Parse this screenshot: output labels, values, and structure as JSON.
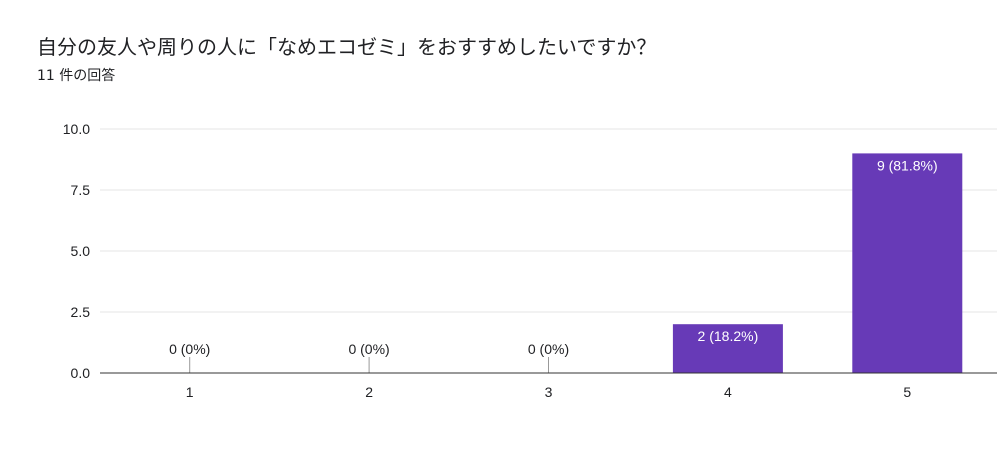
{
  "header": {
    "title": "自分の友人や周りの人に「なめエコゼミ」をおすすめしたいですか？",
    "response_count": "11 件の回答"
  },
  "colors": {
    "bar": "#673ab7",
    "grid": "#e6e6e6",
    "axis": "#333333",
    "text": "#202124",
    "bar_label": "#ffffff"
  },
  "chart_data": {
    "type": "bar",
    "categories": [
      "1",
      "2",
      "3",
      "4",
      "5"
    ],
    "values": [
      0,
      0,
      0,
      2,
      9
    ],
    "data_labels": [
      "0 (0%)",
      "0 (0%)",
      "0 (0%)",
      "2 (18.2%)",
      "9 (81.8%)"
    ],
    "ylim": [
      0,
      10
    ],
    "yticks": [
      "0.0",
      "2.5",
      "5.0",
      "7.5",
      "10.0"
    ],
    "ytick_values": [
      0,
      2.5,
      5,
      7.5,
      10
    ],
    "grid": true,
    "legend": "none"
  }
}
